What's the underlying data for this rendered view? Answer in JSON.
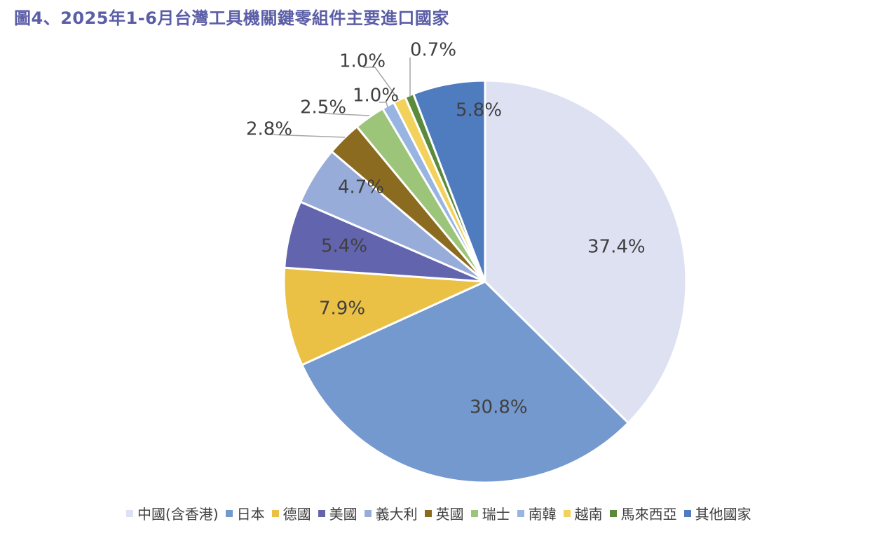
{
  "chart_data": {
    "type": "pie",
    "title": "圖4、2025年1-6月台灣工具機關鍵零組件主要進口國家",
    "legend_position": "bottom",
    "slices": [
      {
        "name": "中國(含香港)",
        "value": 37.4,
        "label": "37.4%",
        "color": "#dde1f2"
      },
      {
        "name": "日本",
        "value": 30.8,
        "label": "30.8%",
        "color": "#7499cf"
      },
      {
        "name": "德國",
        "value": 7.9,
        "label": "7.9%",
        "color": "#ebc145"
      },
      {
        "name": "美國",
        "value": 5.4,
        "label": "5.4%",
        "color": "#6264ad"
      },
      {
        "name": "義大利",
        "value": 4.7,
        "label": "4.7%",
        "color": "#98acd9"
      },
      {
        "name": "英國",
        "value": 2.8,
        "label": "2.8%",
        "color": "#8b6b1f"
      },
      {
        "name": "瑞士",
        "value": 2.5,
        "label": "2.5%",
        "color": "#9cc57a"
      },
      {
        "name": "南韓",
        "value": 1.0,
        "label": "1.0%",
        "color": "#98b4e0"
      },
      {
        "name": "越南",
        "value": 1.0,
        "label": "1.0%",
        "color": "#f2d15c"
      },
      {
        "name": "馬來西亞",
        "value": 0.7,
        "label": "0.7%",
        "color": "#5b8a3a"
      },
      {
        "name": "其他國家",
        "value": 5.8,
        "label": "5.8%",
        "color": "#4f7bbf"
      }
    ]
  }
}
